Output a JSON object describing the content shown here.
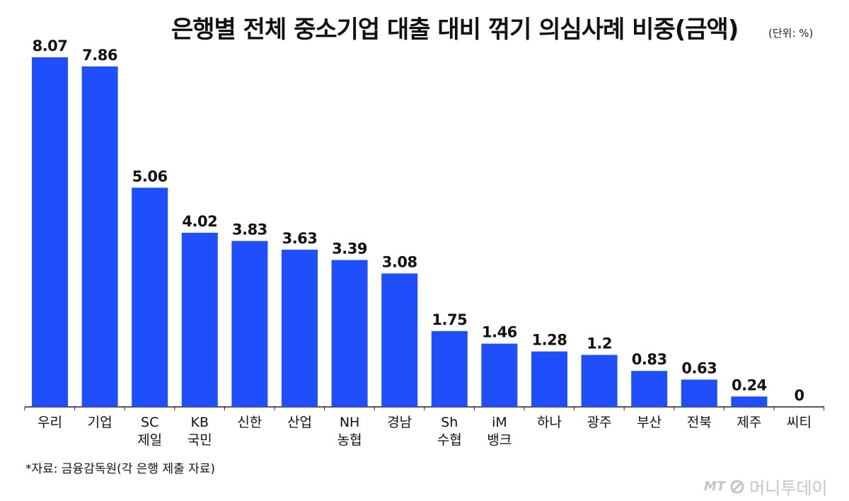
{
  "header": {
    "title": "은행별 전체 중소기업 대출 대비 꺾기 의심사례 비중(금액)",
    "unit": "(단위: %)"
  },
  "footer": {
    "source": "*자료: 금융감독원(각 은행 제출 자료)",
    "logo_mt": "MT",
    "logo_text": "머니투데이"
  },
  "colors": {
    "bar": "#1f4ffb",
    "axis": "#222222",
    "text": "#111111",
    "logo": "#c4c4c4"
  },
  "chart_data": {
    "type": "bar",
    "title": "은행별 전체 중소기업 대출 대비 꺾기 의심사례 비중(금액)",
    "unit": "(단위: %)",
    "categories": [
      [
        "우리"
      ],
      [
        "기업"
      ],
      [
        "SC",
        "제일"
      ],
      [
        "KB",
        "국민"
      ],
      [
        "신한"
      ],
      [
        "산업"
      ],
      [
        "NH",
        "농협"
      ],
      [
        "경남"
      ],
      [
        "Sh",
        "수협"
      ],
      [
        "iM",
        "뱅크"
      ],
      [
        "하나"
      ],
      [
        "광주"
      ],
      [
        "부산"
      ],
      [
        "전북"
      ],
      [
        "제주"
      ],
      [
        "씨티"
      ]
    ],
    "values": [
      8.07,
      7.86,
      5.06,
      4.02,
      3.83,
      3.63,
      3.39,
      3.08,
      1.75,
      1.46,
      1.28,
      1.2,
      0.83,
      0.63,
      0.24,
      0
    ],
    "value_labels": [
      "8.07",
      "7.86",
      "5.06",
      "4.02",
      "3.83",
      "3.63",
      "3.39",
      "3.08",
      "1.75",
      "1.46",
      "1.28",
      "1.2",
      "0.83",
      "0.63",
      "0.24",
      "0"
    ],
    "ylim": [
      0,
      8.07
    ],
    "xlabel": "",
    "ylabel": "",
    "grid": false,
    "legend": "none"
  }
}
